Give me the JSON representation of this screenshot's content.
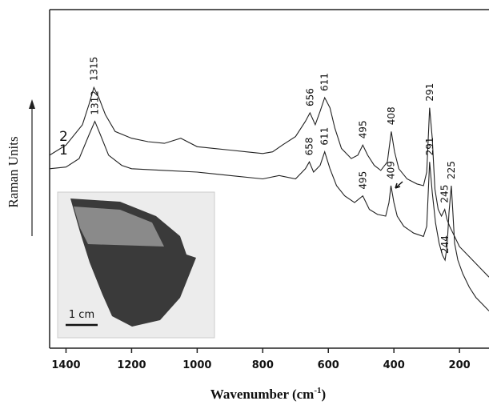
{
  "chart_data": {
    "type": "line",
    "x_label": "Wavenumber (cm",
    "x_label_sup": "-1",
    "x_label_end": ")",
    "y_label": "Raman Units",
    "xlim": [
      1450,
      110
    ],
    "xticks": [
      1400,
      1200,
      1000,
      800,
      600,
      400,
      200
    ],
    "ylim": [
      0,
      100
    ],
    "inset_scale_label": "1 cm",
    "series": [
      {
        "name": "2",
        "color": "#222222",
        "x": [
          1450,
          1400,
          1350,
          1330,
          1315,
          1300,
          1280,
          1250,
          1200,
          1150,
          1100,
          1050,
          1000,
          950,
          900,
          850,
          800,
          770,
          740,
          700,
          670,
          656,
          640,
          625,
          611,
          595,
          580,
          560,
          530,
          510,
          495,
          480,
          460,
          440,
          420,
          408,
          398,
          385,
          360,
          330,
          310,
          300,
          291,
          283,
          275,
          265,
          255,
          245,
          238,
          230,
          215,
          200,
          170,
          150,
          130,
          110
        ],
        "values": [
          57,
          60,
          66,
          72,
          77,
          74,
          69,
          64,
          62,
          61,
          60.5,
          62,
          59.5,
          59,
          58.5,
          58,
          57.5,
          58,
          60,
          62.5,
          67,
          69.5,
          66,
          70,
          74,
          71,
          65,
          59,
          56,
          57,
          60,
          57,
          54,
          52.5,
          55,
          64,
          58,
          53,
          50,
          48.5,
          48,
          52,
          71,
          62,
          47,
          41,
          39,
          41,
          38,
          36,
          33,
          30,
          27,
          25,
          23,
          21
        ],
        "peaks": [
          1315,
          656,
          611,
          495,
          408,
          291,
          245
        ]
      },
      {
        "name": "1",
        "color": "#222222",
        "x": [
          1450,
          1400,
          1360,
          1330,
          1312,
          1295,
          1270,
          1230,
          1200,
          1100,
          1000,
          900,
          800,
          750,
          700,
          670,
          658,
          645,
          625,
          611,
          595,
          575,
          550,
          520,
          495,
          475,
          450,
          425,
          415,
          409,
          400,
          390,
          370,
          340,
          310,
          300,
          291,
          283,
          273,
          262,
          252,
          244,
          238,
          232,
          225,
          220,
          215,
          205,
          190,
          170,
          150,
          130,
          110
        ],
        "values": [
          53,
          53.5,
          56,
          63,
          67,
          63,
          57,
          54,
          53,
          52.5,
          52,
          51,
          50,
          51,
          50,
          53,
          55,
          52,
          54,
          58,
          53,
          48,
          45,
          43,
          45,
          41,
          39.5,
          39,
          43,
          48,
          43,
          39,
          36,
          34,
          33,
          36,
          55,
          46,
          37,
          31,
          27.5,
          26,
          30,
          40,
          48,
          40,
          31,
          26,
          22,
          18,
          15,
          13,
          11
        ],
        "peaks": [
          1312,
          658,
          611,
          495,
          409,
          291,
          244,
          225
        ]
      }
    ]
  }
}
